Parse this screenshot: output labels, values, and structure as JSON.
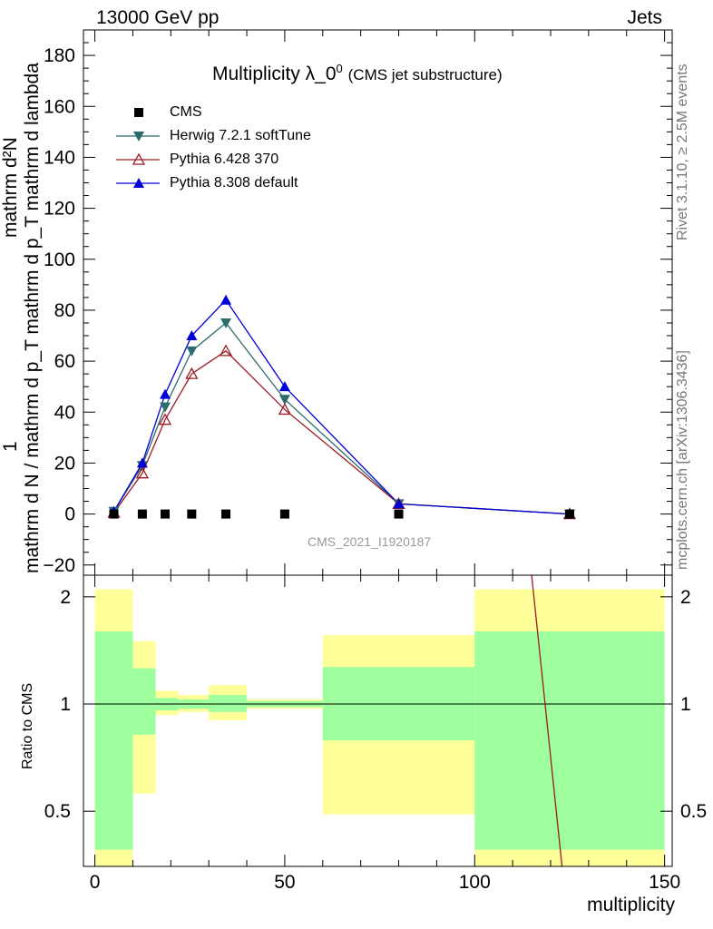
{
  "header": {
    "left": "13000 GeV pp",
    "right": "Jets"
  },
  "side_labels": {
    "rivet": "Rivet 3.1.10, ≥ 2.5M events",
    "reference": "mcplots.cern.ch [arXiv:1306.3436]"
  },
  "plot": {
    "title_main": "Multiplicity λ_0",
    "title_sup": "0",
    "title_note": "(CMS jet substructure)",
    "watermark": "CMS_2021_I1920187",
    "ylabel_num": "mathrm d²N",
    "ylabel_den": "mathrm d N / mathrm d p_T mathrm d p_T mathrm d lambda",
    "ylabel_one": "1",
    "ratio_ylabel": "Ratio to CMS",
    "xlabel": "multiplicity"
  },
  "legend": [
    {
      "label": "CMS",
      "color": "#000000",
      "marker": "square"
    },
    {
      "label": "Herwig 7.2.1 softTune",
      "color": "#2c6b6b",
      "marker": "triangle-down"
    },
    {
      "label": "Pythia 6.428 370",
      "color": "#9c1c26",
      "marker": "triangle-open"
    },
    {
      "label": "Pythia 8.308 default",
      "color": "#0000d8",
      "marker": "triangle-up"
    }
  ],
  "colors": {
    "cms": "#000000",
    "herwig": "#2c6b6b",
    "pythia6": "#9c1c26",
    "pythia8": "#0000d8",
    "band_inner": "#9dff9d",
    "band_outer": "#ffff99"
  },
  "chart_data": {
    "type": "line",
    "xlim": [
      -3,
      152
    ],
    "ylim": [
      -24,
      190
    ],
    "yticks": [
      -20,
      0,
      20,
      40,
      60,
      80,
      100,
      120,
      140,
      160,
      180
    ],
    "xticks": [
      0,
      50,
      100,
      150
    ],
    "ratio_ylim": [
      0.35,
      2.3
    ],
    "ratio_yticks": [
      0.5,
      1,
      2
    ],
    "ratio_ylog": true,
    "x": [
      5,
      12.5,
      18.5,
      25.5,
      34.5,
      50,
      80,
      125
    ],
    "series": [
      {
        "name": "CMS",
        "values": [
          0,
          0,
          0,
          0,
          0,
          0,
          0,
          0
        ]
      },
      {
        "name": "Herwig 7.2.1 softTune",
        "values": [
          1,
          19,
          42,
          64,
          75,
          45,
          4,
          0
        ]
      },
      {
        "name": "Pythia 6.428 370",
        "values": [
          0.5,
          16,
          37,
          55,
          64,
          41,
          4,
          0
        ]
      },
      {
        "name": "Pythia 8.308 default",
        "values": [
          1,
          20,
          47,
          70,
          84,
          50,
          4,
          0
        ]
      }
    ],
    "ratio_bins": [
      {
        "lo": 0,
        "hi": 10,
        "inner": [
          0.39,
          1.6
        ],
        "outer": [
          0.35,
          2.1
        ]
      },
      {
        "lo": 10,
        "hi": 16,
        "inner": [
          0.82,
          1.26
        ],
        "outer": [
          0.56,
          1.5
        ]
      },
      {
        "lo": 16,
        "hi": 22,
        "inner": [
          0.96,
          1.04
        ],
        "outer": [
          0.93,
          1.09
        ]
      },
      {
        "lo": 22,
        "hi": 30,
        "inner": [
          0.97,
          1.03
        ],
        "outer": [
          0.95,
          1.06
        ]
      },
      {
        "lo": 30,
        "hi": 40,
        "inner": [
          0.95,
          1.06
        ],
        "outer": [
          0.9,
          1.13
        ]
      },
      {
        "lo": 40,
        "hi": 60,
        "inner": [
          0.98,
          1.02
        ],
        "outer": [
          0.97,
          1.03
        ]
      },
      {
        "lo": 60,
        "hi": 100,
        "inner": [
          0.79,
          1.27
        ],
        "outer": [
          0.49,
          1.56
        ]
      },
      {
        "lo": 100,
        "hi": 150,
        "inner": [
          0.39,
          1.6
        ],
        "outer": [
          0.35,
          2.1
        ]
      }
    ],
    "ratio_line": {
      "name": "Pythia 6.428 370",
      "from": [
        115,
        2.3
      ],
      "to": [
        123,
        0.35
      ]
    }
  }
}
